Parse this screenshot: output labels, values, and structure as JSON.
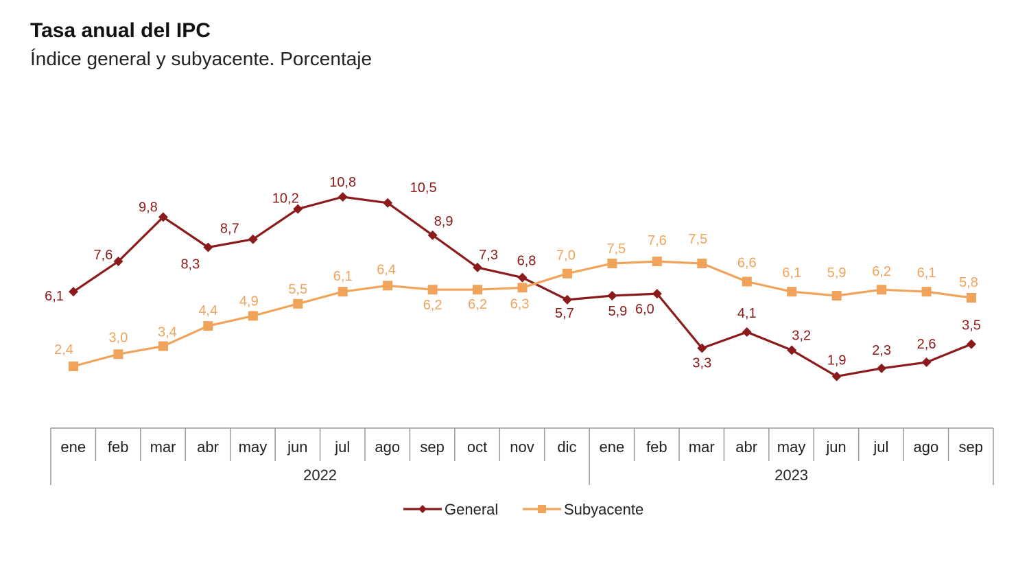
{
  "chart_data": {
    "type": "line",
    "title": "Tasa anual del IPC",
    "subtitle": "Índice general y subyacente. Porcentaje",
    "categories": [
      "ene",
      "feb",
      "mar",
      "abr",
      "may",
      "jun",
      "jul",
      "ago",
      "sep",
      "oct",
      "nov",
      "dic",
      "ene",
      "feb",
      "mar",
      "abr",
      "may",
      "jun",
      "jul",
      "ago",
      "sep"
    ],
    "years": [
      {
        "label": "2022",
        "start": 0,
        "end": 11
      },
      {
        "label": "2023",
        "start": 12,
        "end": 20
      }
    ],
    "series": [
      {
        "name": "General",
        "color": "#8b1a1a",
        "marker": "diamond",
        "values": [
          6.1,
          7.6,
          9.8,
          8.3,
          8.7,
          10.2,
          10.8,
          10.5,
          8.9,
          7.3,
          6.8,
          5.7,
          5.9,
          6.0,
          3.3,
          4.1,
          3.2,
          1.9,
          2.3,
          2.6,
          3.5
        ],
        "labels": [
          "6,1",
          "7,6",
          "9,8",
          "8,3",
          "8,7",
          "10,2",
          "10,8",
          "10,5",
          "8,9",
          "7,3",
          "6,8",
          "5,7",
          "5,9",
          "6,0",
          "3,3",
          "4,1",
          "3,2",
          "1,9",
          "2,3",
          "2,6",
          "3,5"
        ]
      },
      {
        "name": "Subyacente",
        "color": "#f0a35a",
        "marker": "square",
        "values": [
          2.4,
          3.0,
          3.4,
          4.4,
          4.9,
          5.5,
          6.1,
          6.4,
          6.2,
          6.2,
          6.3,
          7.0,
          7.5,
          7.6,
          7.5,
          6.6,
          6.1,
          5.9,
          6.2,
          6.1,
          5.8
        ],
        "labels": [
          "2,4",
          "3,0",
          "3,4",
          "4,4",
          "4,9",
          "5,5",
          "6,1",
          "6,4",
          "6,2",
          "6,2",
          "6,3",
          "7,0",
          "7,5",
          "7,6",
          "7,5",
          "6,6",
          "6,1",
          "5,9",
          "6,2",
          "6,1",
          "5,8"
        ]
      }
    ],
    "ylim": [
      0,
      12
    ],
    "grid": false,
    "legend": "bottom-center"
  }
}
